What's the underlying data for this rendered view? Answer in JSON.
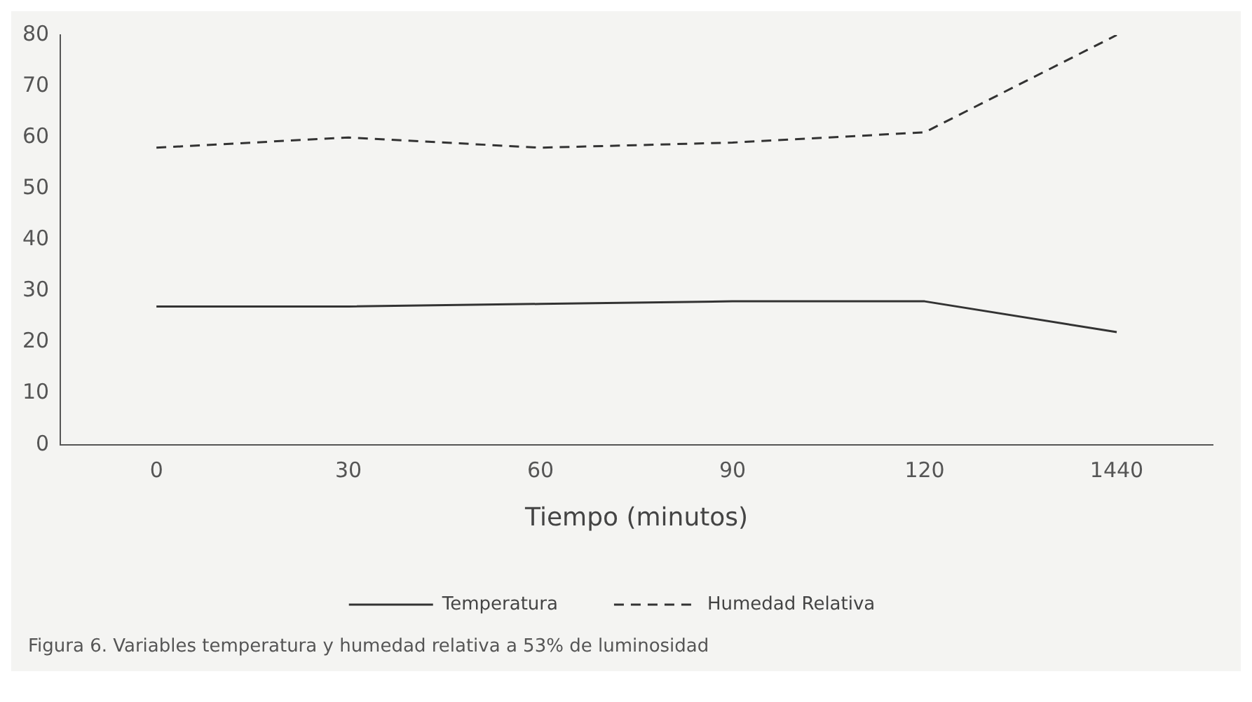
{
  "chart_data": {
    "type": "line",
    "xlabel": "Tiempo (minutos)",
    "categories": [
      "0",
      "30",
      "60",
      "90",
      "120",
      "1440"
    ],
    "series": [
      {
        "name": "Temperatura",
        "color": "#333333",
        "line_style": "solid",
        "values": [
          27,
          27,
          27.5,
          28,
          28,
          22
        ]
      },
      {
        "name": "Humedad Relativa",
        "color": "#333333",
        "line_style": "dashed",
        "values": [
          58,
          60,
          58,
          59,
          61,
          80
        ]
      }
    ],
    "ylim": [
      0,
      80
    ],
    "yticks": [
      0,
      10,
      20,
      30,
      40,
      50,
      60,
      70,
      80
    ],
    "grid": false,
    "legend": "bottom",
    "marker": "none",
    "annotations": [
      "Figura 6. Variables temperatura y humedad relativa a 53% de luminosidad"
    ]
  }
}
